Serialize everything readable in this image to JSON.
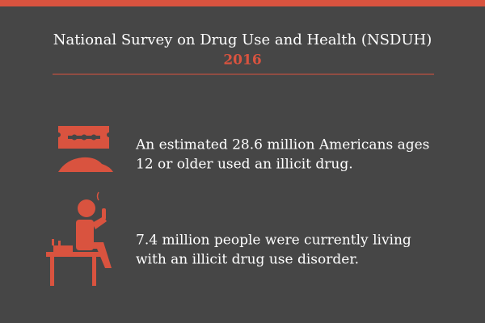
{
  "header": {
    "title": "National Survey on Drug Use and Health (NSDUH)",
    "year": "2016"
  },
  "items": [
    {
      "lines": [
        "An estimated 28.6 million Americans ages",
        "12 or older used an illicit drug."
      ]
    },
    {
      "lines": [
        "7.4 million people were currently living",
        "with an illicit drug use disorder."
      ]
    }
  ]
}
